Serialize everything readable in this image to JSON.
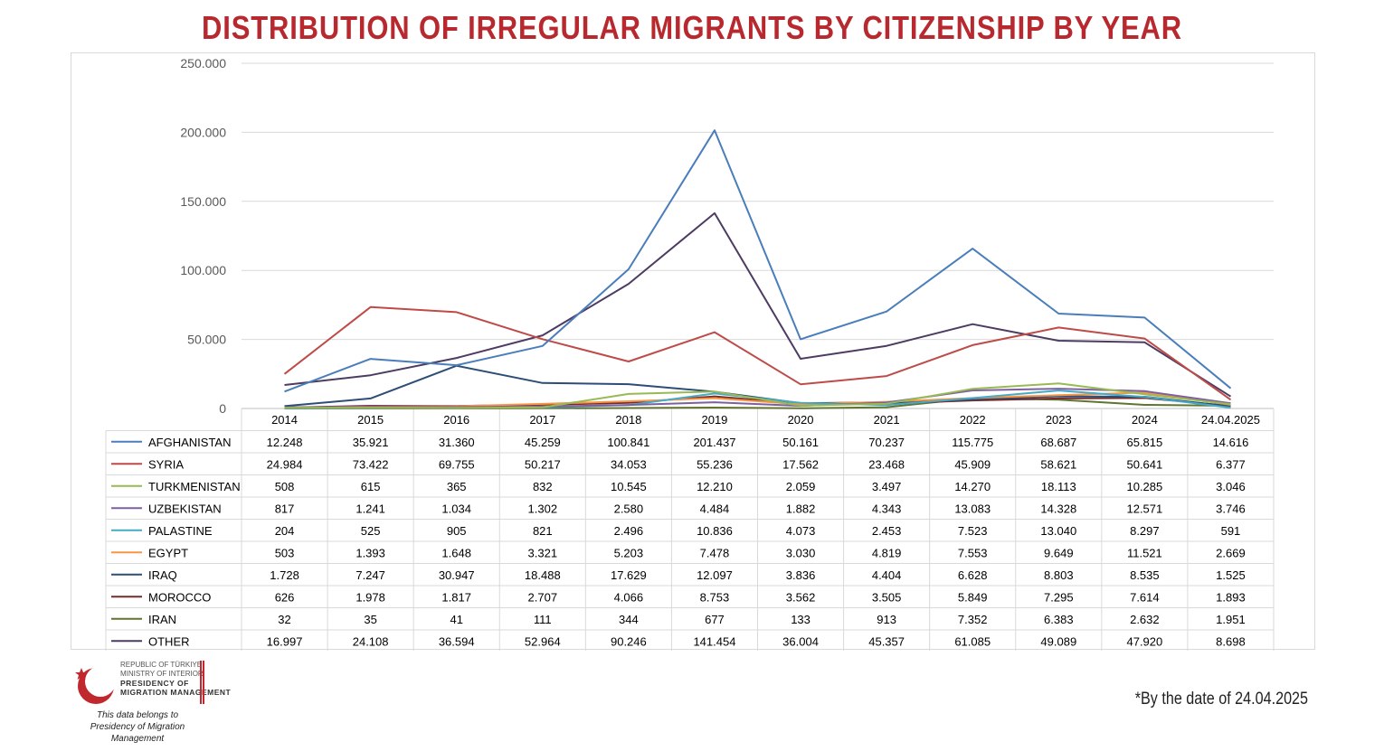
{
  "title": "DISTRIBUTION OF IRREGULAR MIGRANTS BY CITIZENSHIP BY YEAR",
  "footnote": "*By the date of 24.04.2025",
  "logo": {
    "line1": "REPUBLIC OF TÜRKIYE",
    "line2": "MINISTRY OF INTERIOR",
    "line3": "PRESIDENCY OF",
    "line4": "MIGRATION MANAGEMENT",
    "brand_color": "#c0282d"
  },
  "data_owner": {
    "line1": "This data belongs to",
    "line2": "Presidency of Migration Management"
  },
  "chart_data": {
    "type": "line",
    "title": "DISTRIBUTION OF IRREGULAR MIGRANTS BY CITIZENSHIP BY YEAR",
    "categories": [
      "2014",
      "2015",
      "2016",
      "2017",
      "2018",
      "2019",
      "2020",
      "2021",
      "2022",
      "2023",
      "2024",
      "24.04.2025"
    ],
    "ylim": [
      0,
      250000
    ],
    "yticks": [
      0,
      50000,
      100000,
      150000,
      200000,
      250000
    ],
    "ytick_labels": [
      "0",
      "50.000",
      "100.000",
      "150.000",
      "200.000",
      "250.000"
    ],
    "grid": true,
    "data_table": true,
    "series": [
      {
        "name": "AFGHANISTAN",
        "color": "#4a7ebb",
        "values": [
          12248,
          35921,
          31360,
          45259,
          100841,
          201437,
          50161,
          70237,
          115775,
          68687,
          65815,
          14616
        ],
        "labels": [
          "12.248",
          "35.921",
          "31.360",
          "45.259",
          "100.841",
          "201.437",
          "50.161",
          "70.237",
          "115.775",
          "68.687",
          "65.815",
          "14.616"
        ]
      },
      {
        "name": "SYRIA",
        "color": "#be4b48",
        "values": [
          24984,
          73422,
          69755,
          50217,
          34053,
          55236,
          17562,
          23468,
          45909,
          58621,
          50641,
          6377
        ],
        "labels": [
          "24.984",
          "73.422",
          "69.755",
          "50.217",
          "34.053",
          "55.236",
          "17.562",
          "23.468",
          "45.909",
          "58.621",
          "50.641",
          "6.377"
        ]
      },
      {
        "name": "TURKMENISTAN",
        "color": "#98b954",
        "values": [
          508,
          615,
          365,
          832,
          10545,
          12210,
          2059,
          3497,
          14270,
          18113,
          10285,
          3046
        ],
        "labels": [
          "508",
          "615",
          "365",
          "832",
          "10.545",
          "12.210",
          "2.059",
          "3.497",
          "14.270",
          "18.113",
          "10.285",
          "3.046"
        ]
      },
      {
        "name": "UZBEKISTAN",
        "color": "#7d60a0",
        "values": [
          817,
          1241,
          1034,
          1302,
          2580,
          4484,
          1882,
          4343,
          13083,
          14328,
          12571,
          3746
        ],
        "labels": [
          "817",
          "1.241",
          "1.034",
          "1.302",
          "2.580",
          "4.484",
          "1.882",
          "4.343",
          "13.083",
          "14.328",
          "12.571",
          "3.746"
        ]
      },
      {
        "name": "PALASTINE",
        "color": "#46aac5",
        "values": [
          204,
          525,
          905,
          821,
          2496,
          10836,
          4073,
          2453,
          7523,
          13040,
          8297,
          591
        ],
        "labels": [
          "204",
          "525",
          "905",
          "821",
          "2.496",
          "10.836",
          "4.073",
          "2.453",
          "7.523",
          "13.040",
          "8.297",
          "591"
        ]
      },
      {
        "name": "EGYPT",
        "color": "#f79646",
        "values": [
          503,
          1393,
          1648,
          3321,
          5203,
          7478,
          3030,
          4819,
          7553,
          9649,
          11521,
          2669
        ],
        "labels": [
          "503",
          "1.393",
          "1.648",
          "3.321",
          "5.203",
          "7.478",
          "3.030",
          "4.819",
          "7.553",
          "9.649",
          "11.521",
          "2.669"
        ]
      },
      {
        "name": "IRAQ",
        "color": "#2c4d75",
        "values": [
          1728,
          7247,
          30947,
          18488,
          17629,
          12097,
          3836,
          4404,
          6628,
          8803,
          8535,
          1525
        ],
        "labels": [
          "1.728",
          "7.247",
          "30.947",
          "18.488",
          "17.629",
          "12.097",
          "3.836",
          "4.404",
          "6.628",
          "8.803",
          "8.535",
          "1.525"
        ]
      },
      {
        "name": "MOROCCO",
        "color": "#772c2a",
        "values": [
          626,
          1978,
          1817,
          2707,
          4066,
          8753,
          3562,
          3505,
          5849,
          7295,
          7614,
          1893
        ],
        "labels": [
          "626",
          "1.978",
          "1.817",
          "2.707",
          "4.066",
          "8.753",
          "3.562",
          "3.505",
          "5.849",
          "7.295",
          "7.614",
          "1.893"
        ]
      },
      {
        "name": "IRAN",
        "color": "#5f7530",
        "values": [
          32,
          35,
          41,
          111,
          344,
          677,
          133,
          913,
          7352,
          6383,
          2632,
          1951
        ],
        "labels": [
          "32",
          "35",
          "41",
          "111",
          "344",
          "677",
          "133",
          "913",
          "7.352",
          "6.383",
          "2.632",
          "1.951"
        ]
      },
      {
        "name": "OTHER",
        "color": "#4d3b62",
        "values": [
          16997,
          24108,
          36594,
          52964,
          90246,
          141454,
          36004,
          45357,
          61085,
          49089,
          47920,
          8698
        ],
        "labels": [
          "16.997",
          "24.108",
          "36.594",
          "52.964",
          "90.246",
          "141.454",
          "36.004",
          "45.357",
          "61.085",
          "49.089",
          "47.920",
          "8.698"
        ]
      }
    ]
  }
}
